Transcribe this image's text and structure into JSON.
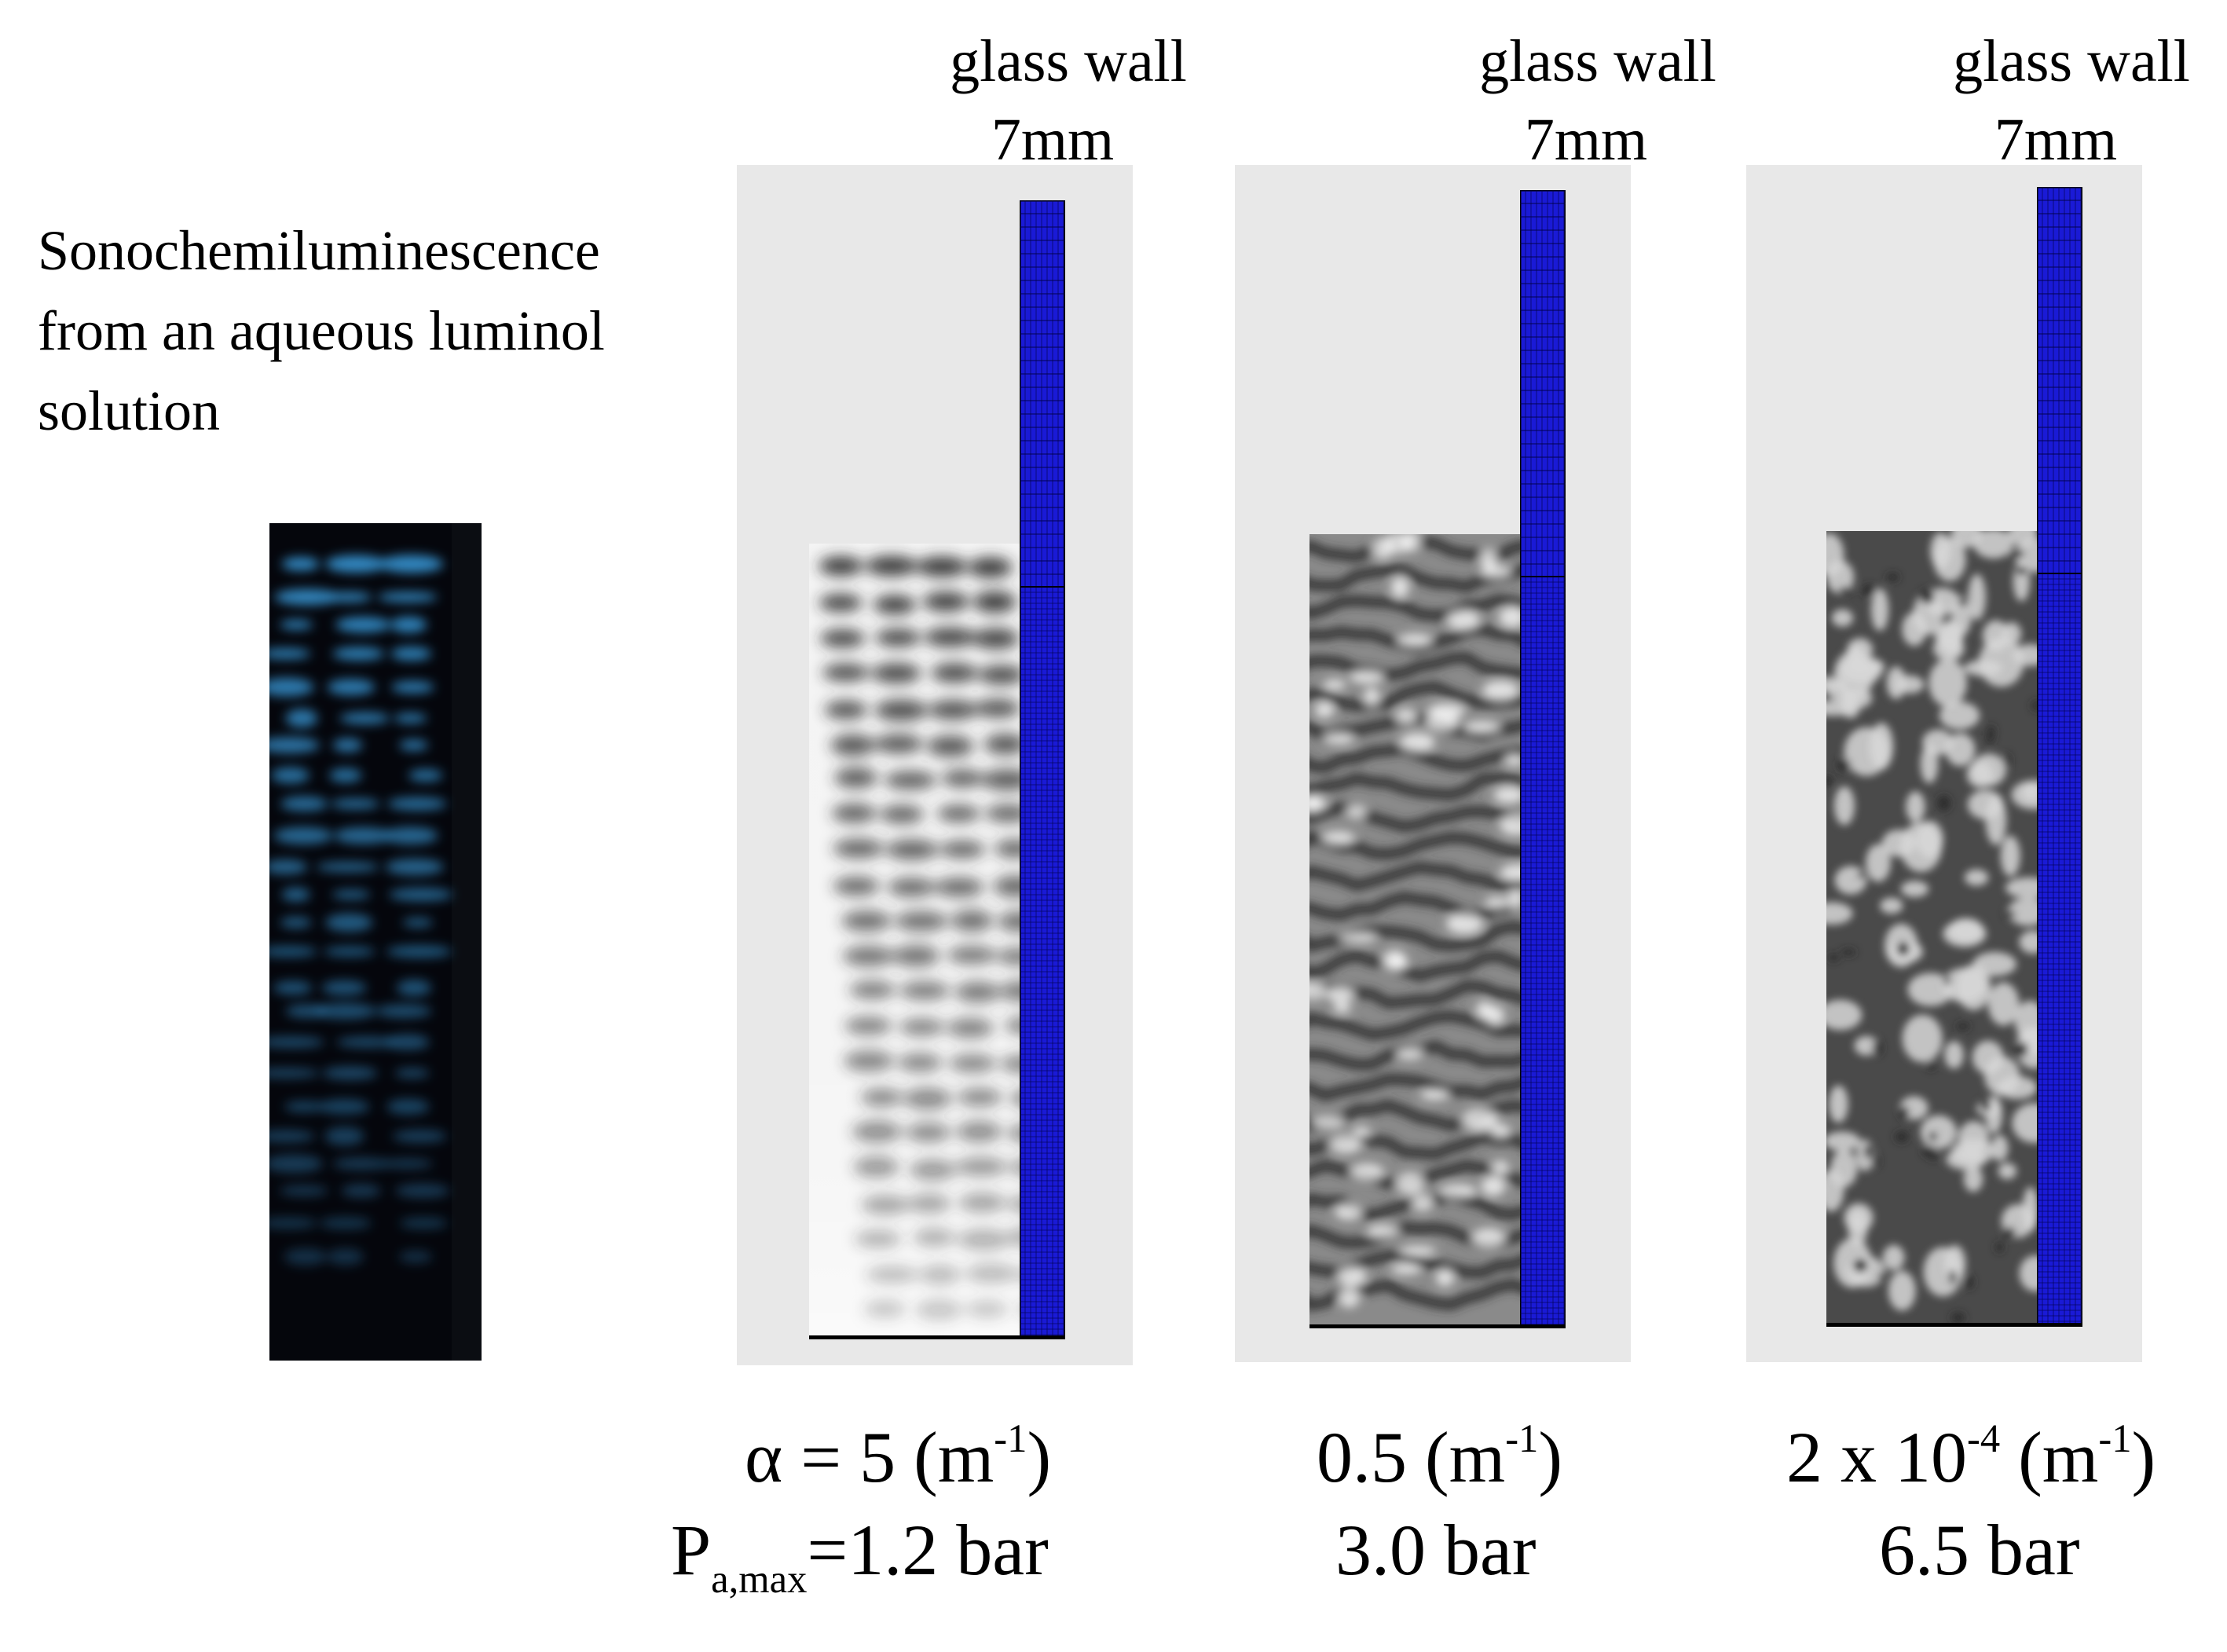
{
  "left_caption": [
    "Sonochemiluminescence",
    "from an aqueous luminol",
    "solution"
  ],
  "panels": [
    {
      "wall_label_line1": "glass wall",
      "wall_label_line2": "7mm",
      "alpha_label": "α = 5 (m",
      "alpha_sup": "-1",
      "alpha_close": ")",
      "pressure_prefix": "P",
      "pressure_sub": "a,max",
      "pressure_value": "=1.2 bar"
    },
    {
      "wall_label_line1": "glass wall",
      "wall_label_line2": "7mm",
      "alpha_label": "0.5 (m",
      "alpha_sup": "-1",
      "alpha_close": ")",
      "pressure_value": "3.0 bar"
    },
    {
      "wall_label_line1": "glass wall",
      "wall_label_line2": "7mm",
      "alpha_label": "2 x 10",
      "alpha_sup_exp": "-4",
      "alpha_unit": " (m",
      "alpha_sup": "-1",
      "alpha_close": ")",
      "pressure_value": "6.5 bar"
    }
  ],
  "colors": {
    "glass_wall": "#1a1ad6",
    "panel_background": "#e8e8e8",
    "photo_background": "#05060c",
    "luminescence": "#3a9ee0"
  }
}
